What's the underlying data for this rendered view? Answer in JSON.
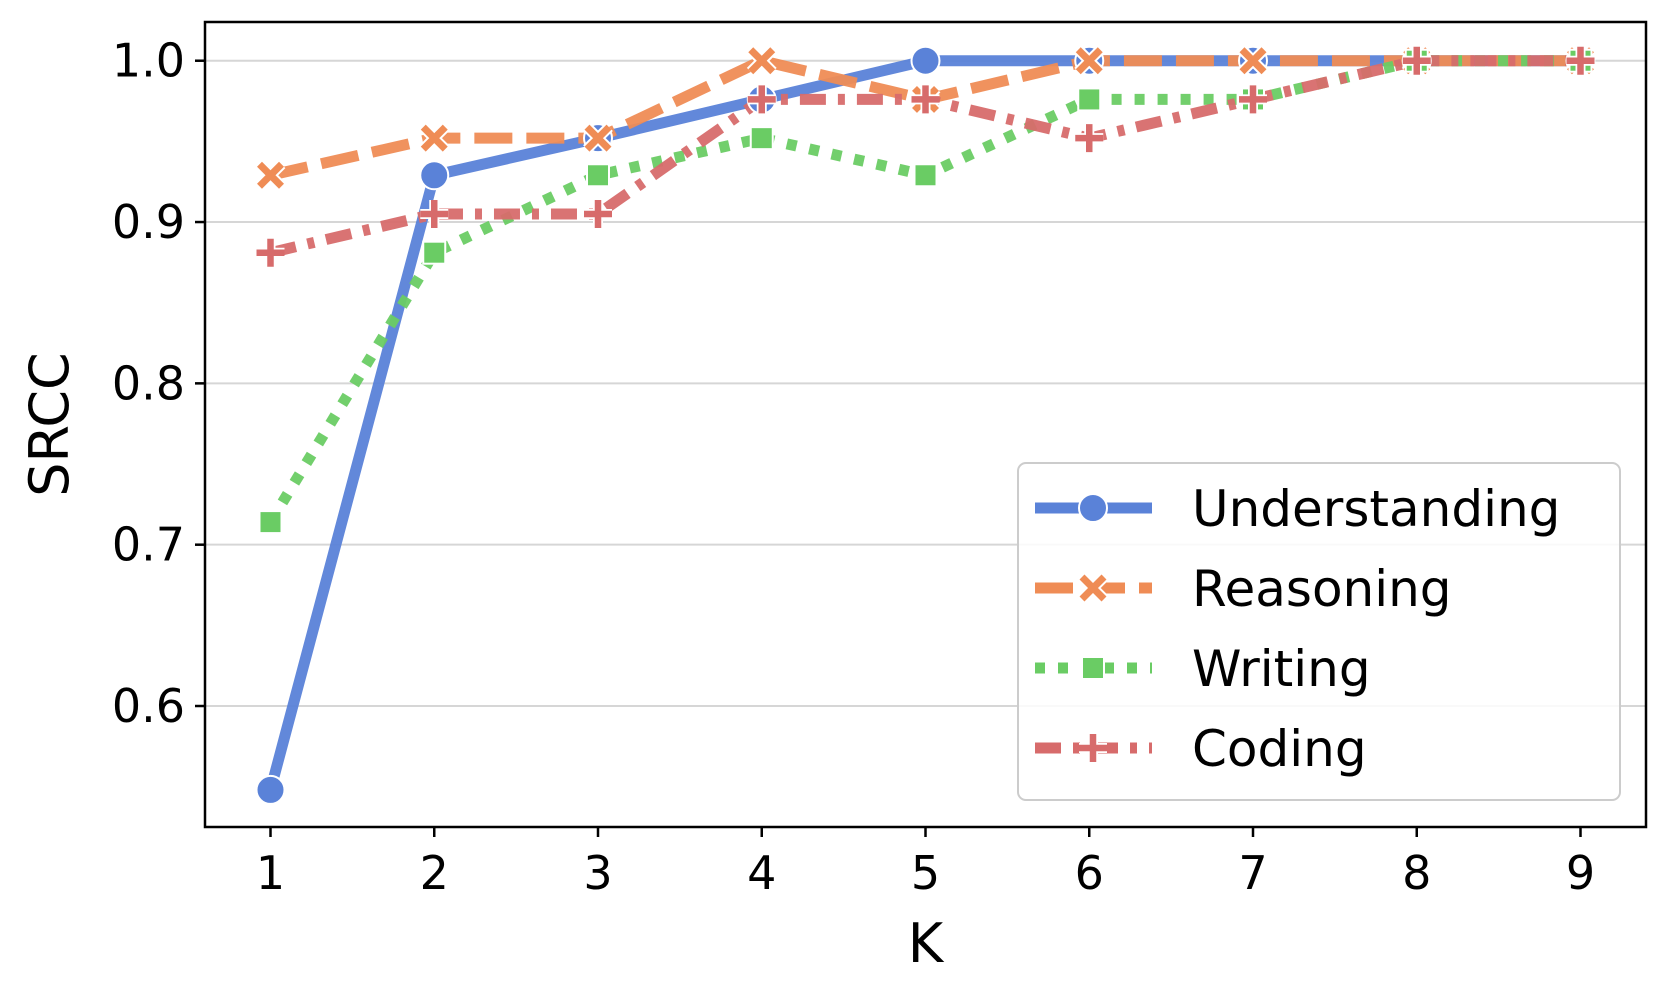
{
  "chart_data": {
    "type": "line",
    "title": "",
    "xlabel": "K",
    "ylabel": "SRCC",
    "x": [
      1,
      2,
      3,
      4,
      5,
      6,
      7,
      8,
      9
    ],
    "xlim": [
      0.6,
      9.4
    ],
    "ylim": [
      0.525,
      1.024
    ],
    "yticks": [
      0.6,
      0.7,
      0.8,
      0.9,
      1.0
    ],
    "ytick_labels": [
      "0.6",
      "0.7",
      "0.8",
      "0.9",
      "1.0"
    ],
    "xtick_labels": [
      "1",
      "2",
      "3",
      "4",
      "5",
      "6",
      "7",
      "8",
      "9"
    ],
    "grid": "horizontal",
    "legend_position": "lower-right",
    "series": [
      {
        "name": "Understanding",
        "values": [
          0.548,
          0.929,
          0.952,
          0.976,
          1.0,
          1.0,
          1.0,
          1.0,
          1.0
        ],
        "color": "#5a82d8",
        "marker": "circle",
        "dash": "solid"
      },
      {
        "name": "Reasoning",
        "values": [
          0.929,
          0.952,
          0.952,
          1.0,
          0.976,
          1.0,
          1.0,
          1.0,
          1.0
        ],
        "color": "#ef8c55",
        "marker": "x",
        "dash": "dashed"
      },
      {
        "name": "Writing",
        "values": [
          0.714,
          0.881,
          0.929,
          0.952,
          0.929,
          0.976,
          0.976,
          1.0,
          1.0
        ],
        "color": "#6acc64",
        "marker": "square",
        "dash": "dotted"
      },
      {
        "name": "Coding",
        "values": [
          0.881,
          0.905,
          0.905,
          0.976,
          0.976,
          0.952,
          0.976,
          1.0,
          1.0
        ],
        "color": "#d76b6b",
        "marker": "plus",
        "dash": "dashdot"
      }
    ]
  }
}
